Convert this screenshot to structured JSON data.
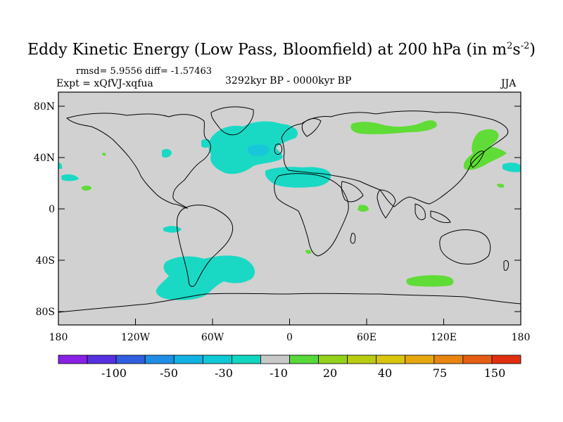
{
  "title": {
    "text": "Eddy Kinetic Energy (Low Pass, Bloomfield) at 200 hPa (in m",
    "sup1": "2",
    "mid": "s",
    "sup2": "-2",
    "end": ")"
  },
  "stats": "rmsd= 5.9556  diff= -1.57463",
  "experiment": "Expt = xQfVJ-xqfua",
  "period": "3292kyr BP - 0000kyr BP",
  "season": "JJA",
  "lat_labels": [
    "80N",
    "40N",
    "0",
    "40S",
    "80S"
  ],
  "lon_labels": [
    "180",
    "120W",
    "60W",
    "0",
    "60E",
    "120E",
    "180"
  ],
  "legend": {
    "labels": [
      "-100",
      "-50",
      "-30",
      "-10",
      "20",
      "40",
      "75",
      "150"
    ],
    "colors": [
      "#8a1fe6",
      "#5530e0",
      "#2f5fe0",
      "#1e8ee6",
      "#12b2e3",
      "#10c9d6",
      "#12d6c0",
      "#c8c8c8",
      "#58d93a",
      "#94d11a",
      "#b9cc10",
      "#d8c50c",
      "#e6a80e",
      "#e8850f",
      "#e65e12",
      "#e03010"
    ]
  },
  "colors": {
    "land_ocean": "#d1d1d1",
    "negative_fill": "#19d9c5",
    "negative_strong": "#17c6d9",
    "positive_fill": "#5fdc35"
  }
}
